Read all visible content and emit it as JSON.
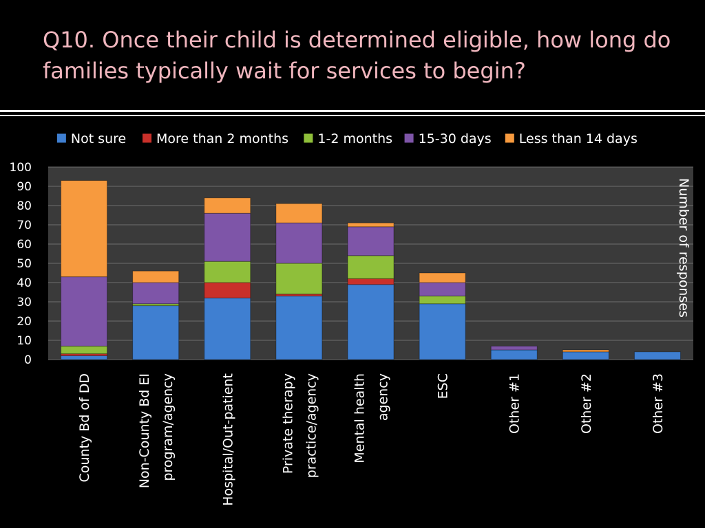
{
  "title": "Q10. Once their child is determined eligible, how long do families typically wait for services to begin?",
  "chart_data": {
    "type": "bar",
    "stacked": true,
    "title": "",
    "xlabel": "",
    "ylabel": "Number of responses",
    "ylim": [
      0,
      100
    ],
    "yticks": [
      0,
      10,
      20,
      30,
      40,
      50,
      60,
      70,
      80,
      90,
      100
    ],
    "legend_position": "top",
    "grid": true,
    "background": "#3a3a3a",
    "categories": [
      "County Bd of DD",
      "Non-County Bd EI program/agency",
      "Hospital/Out-patient",
      "Private therapy practice/agency",
      "Mental health agency",
      "ESC",
      "Other #1",
      "Other #2",
      "Other #3"
    ],
    "series": [
      {
        "name": "Not sure",
        "color": "#3f7fd1",
        "values": [
          2,
          28,
          32,
          33,
          39,
          29,
          5,
          4,
          4
        ]
      },
      {
        "name": "More than 2 months",
        "color": "#c9302a",
        "values": [
          1,
          0,
          8,
          1,
          3,
          0,
          0,
          0,
          0
        ]
      },
      {
        "name": "1-2 months",
        "color": "#8fbf3a",
        "values": [
          4,
          1,
          11,
          16,
          12,
          4,
          0,
          0,
          0
        ]
      },
      {
        "name": "15-30 days",
        "color": "#7e55a8",
        "values": [
          36,
          11,
          25,
          21,
          15,
          7,
          2,
          0,
          0
        ]
      },
      {
        "name": "Less than 14 days",
        "color": "#f79a3e",
        "values": [
          50,
          6,
          8,
          10,
          2,
          5,
          0,
          1,
          0
        ]
      }
    ]
  }
}
